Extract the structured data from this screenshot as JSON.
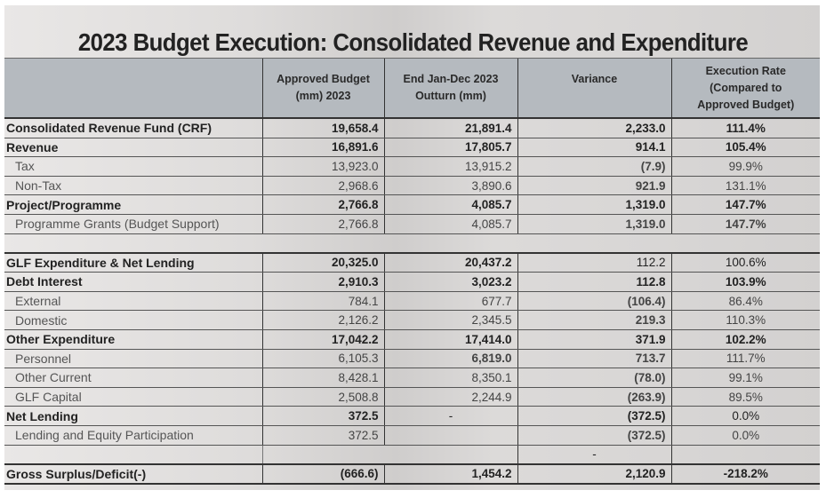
{
  "title": "2023 Budget Execution: Consolidated Revenue and Expenditure",
  "columns": [
    "",
    "Approved Budget (mm) 2023",
    "End Jan-Dec 2023 Outturn (mm)",
    "Variance",
    "Execution Rate (Compared to Approved Budget)"
  ],
  "header_lines": {
    "approved": [
      "Approved Budget",
      "(mm) 2023"
    ],
    "outturn": [
      "End Jan-Dec 2023",
      "Outturn (mm)"
    ],
    "variance": [
      "Variance"
    ],
    "rate": [
      "Execution Rate",
      "(Compared to",
      "Approved Budget)"
    ]
  },
  "rows": [
    {
      "label": "Consolidated Revenue Fund (CRF)",
      "approved": "19,658.4",
      "outturn": "21,891.4",
      "variance": "2,233.0",
      "rate": "111.4%"
    },
    {
      "label": "Revenue",
      "approved": "16,891.6",
      "outturn": "17,805.7",
      "variance": "914.1",
      "rate": "105.4%"
    },
    {
      "label": "Tax",
      "approved": "13,923.0",
      "outturn": "13,915.2",
      "variance": "(7.9)",
      "rate": "99.9%"
    },
    {
      "label": "Non-Tax",
      "approved": "2,968.6",
      "outturn": "3,890.6",
      "variance": "921.9",
      "rate": "131.1%"
    },
    {
      "label": "Project/Programme",
      "approved": "2,766.8",
      "outturn": "4,085.7",
      "variance": "1,319.0",
      "rate": "147.7%"
    },
    {
      "label": "Programme Grants (Budget Support)",
      "approved": "2,766.8",
      "outturn": "4,085.7",
      "variance": "1,319.0",
      "rate": "147.7%"
    },
    {
      "label": "GLF Expenditure & Net Lending",
      "approved": "20,325.0",
      "outturn": "20,437.2",
      "variance": "112.2",
      "rate": "100.6%"
    },
    {
      "label": "Debt Interest",
      "approved": "2,910.3",
      "outturn": "3,023.2",
      "variance": "112.8",
      "rate": "103.9%"
    },
    {
      "label": "External",
      "approved": "784.1",
      "outturn": "677.7",
      "variance": "(106.4)",
      "rate": "86.4%"
    },
    {
      "label": "Domestic",
      "approved": "2,126.2",
      "outturn": "2,345.5",
      "variance": "219.3",
      "rate": "110.3%"
    },
    {
      "label": "Other Expenditure",
      "approved": "17,042.2",
      "outturn": "17,414.0",
      "variance": "371.9",
      "rate": "102.2%"
    },
    {
      "label": "Personnel",
      "approved": "6,105.3",
      "outturn": "6,819.0",
      "variance": "713.7",
      "rate": "111.7%"
    },
    {
      "label": "Other Current",
      "approved": "8,428.1",
      "outturn": "8,350.1",
      "variance": "(78.0)",
      "rate": "99.1%"
    },
    {
      "label": "GLF Capital",
      "approved": "2,508.8",
      "outturn": "2,244.9",
      "variance": "(263.9)",
      "rate": "89.5%"
    },
    {
      "label": "Net Lending",
      "approved": "372.5",
      "outturn": "-",
      "variance": "(372.5)",
      "rate": "0.0%"
    },
    {
      "label": "Lending and Equity Participation",
      "approved": "372.5",
      "outturn": "",
      "variance": "(372.5)",
      "rate": "0.0%"
    },
    {
      "label": "",
      "approved": "",
      "outturn": "",
      "variance": "-",
      "rate": ""
    },
    {
      "label": "Gross Surplus/Deficit(-)",
      "approved": "(666.6)",
      "outturn": "1,454.2",
      "variance": "2,120.9",
      "rate": "-218.2%"
    }
  ]
}
